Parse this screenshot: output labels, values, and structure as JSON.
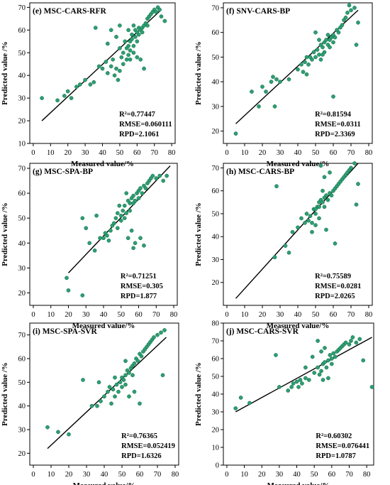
{
  "colors": {
    "point": "#2e9e72",
    "point_edge": "#0f6b47",
    "fit_line": "#000000",
    "frame": "#000000"
  },
  "chart_data": [
    {
      "type": "scatter",
      "letter": "(e)",
      "title": "MSC-CARS-RFR",
      "xlabel": "Measured value/%",
      "ylabel": "Predicted value /%",
      "xlim": [
        -2,
        82
      ],
      "ylim": [
        10,
        72
      ],
      "xticks": [
        0,
        10,
        20,
        30,
        40,
        50,
        60,
        70,
        80
      ],
      "yticks": [
        10,
        20,
        30,
        40,
        50,
        60,
        70
      ],
      "fit_line": [
        [
          5,
          20
        ],
        [
          74,
          69
        ]
      ],
      "stats": [
        "R²=0.77447",
        "RMSE=0.060111",
        "RPD=2.1061"
      ],
      "points": [
        [
          5,
          30
        ],
        [
          14,
          29
        ],
        [
          18,
          31
        ],
        [
          20,
          33
        ],
        [
          22,
          30
        ],
        [
          25,
          35
        ],
        [
          27,
          36
        ],
        [
          30,
          38
        ],
        [
          33,
          36
        ],
        [
          35,
          37
        ],
        [
          36,
          61
        ],
        [
          38,
          44
        ],
        [
          40,
          43
        ],
        [
          42,
          46
        ],
        [
          43,
          41
        ],
        [
          45,
          44
        ],
        [
          46,
          47
        ],
        [
          47,
          40
        ],
        [
          48,
          43
        ],
        [
          49,
          38
        ],
        [
          50,
          42
        ],
        [
          50,
          52
        ],
        [
          51,
          48
        ],
        [
          52,
          45
        ],
        [
          52,
          50
        ],
        [
          53,
          55
        ],
        [
          54,
          47
        ],
        [
          54,
          52
        ],
        [
          55,
          53
        ],
        [
          55,
          49
        ],
        [
          56,
          55
        ],
        [
          56,
          51
        ],
        [
          57,
          56
        ],
        [
          57,
          58
        ],
        [
          58,
          53
        ],
        [
          58,
          50
        ],
        [
          59,
          57
        ],
        [
          59,
          60
        ],
        [
          60,
          55
        ],
        [
          60,
          59
        ],
        [
          61,
          58
        ],
        [
          61,
          61
        ],
        [
          62,
          60
        ],
        [
          62,
          47
        ],
        [
          63,
          61
        ],
        [
          63,
          59
        ],
        [
          64,
          62
        ],
        [
          64,
          43
        ],
        [
          65,
          63
        ],
        [
          66,
          62
        ],
        [
          66,
          65
        ],
        [
          67,
          66
        ],
        [
          68,
          67
        ],
        [
          69,
          68
        ],
        [
          70,
          69
        ],
        [
          71,
          68
        ],
        [
          72,
          70
        ],
        [
          73,
          69
        ],
        [
          74,
          66
        ],
        [
          76,
          64
        ],
        [
          43,
          54
        ],
        [
          48,
          57
        ],
        [
          55,
          60
        ],
        [
          58,
          62
        ],
        [
          60,
          48
        ],
        [
          56,
          47
        ],
        [
          45,
          60
        ],
        [
          50,
          62
        ]
      ]
    },
    {
      "type": "scatter",
      "letter": "(f)",
      "title": "SNV-CARS-BP",
      "xlabel": "Measured value/%",
      "ylabel": "Predicted value /%",
      "xlim": [
        -2,
        82
      ],
      "ylim": [
        15,
        72
      ],
      "xticks": [
        0,
        10,
        20,
        30,
        40,
        50,
        60,
        70,
        80
      ],
      "yticks": [
        20,
        30,
        40,
        50,
        60,
        70
      ],
      "fit_line": [
        [
          5,
          23
        ],
        [
          74,
          69
        ]
      ],
      "stats": [
        "R²=0.81594",
        "RMSE=0.0311",
        "RPD=2.3369"
      ],
      "points": [
        [
          5,
          19
        ],
        [
          14,
          36
        ],
        [
          18,
          30
        ],
        [
          20,
          38
        ],
        [
          22,
          36
        ],
        [
          25,
          40
        ],
        [
          26,
          42
        ],
        [
          27,
          30
        ],
        [
          28,
          41
        ],
        [
          30,
          40
        ],
        [
          35,
          41
        ],
        [
          40,
          45
        ],
        [
          42,
          47
        ],
        [
          43,
          44
        ],
        [
          44,
          48
        ],
        [
          45,
          43
        ],
        [
          45,
          50
        ],
        [
          46,
          47
        ],
        [
          48,
          49
        ],
        [
          49,
          52
        ],
        [
          50,
          60
        ],
        [
          50,
          50
        ],
        [
          51,
          53
        ],
        [
          52,
          51
        ],
        [
          53,
          55
        ],
        [
          54,
          54
        ],
        [
          54,
          51
        ],
        [
          55,
          56
        ],
        [
          55,
          52
        ],
        [
          56,
          57
        ],
        [
          57,
          55
        ],
        [
          57,
          59
        ],
        [
          58,
          57
        ],
        [
          59,
          58
        ],
        [
          60,
          56
        ],
        [
          60,
          59
        ],
        [
          60,
          34
        ],
        [
          61,
          58
        ],
        [
          62,
          61
        ],
        [
          63,
          60
        ],
        [
          64,
          62
        ],
        [
          65,
          63
        ],
        [
          66,
          65
        ],
        [
          67,
          66
        ],
        [
          68,
          68
        ],
        [
          69,
          71
        ],
        [
          70,
          69
        ],
        [
          72,
          70
        ],
        [
          73,
          55
        ],
        [
          74,
          64
        ],
        [
          52,
          57
        ],
        [
          47,
          50
        ],
        [
          53,
          49
        ],
        [
          58,
          54
        ]
      ]
    },
    {
      "type": "scatter",
      "letter": "(g)",
      "title": "MSC-SPA-BP",
      "xlabel": "Measured value/%",
      "ylabel": "Predicted value /%",
      "xlim": [
        -2,
        82
      ],
      "ylim": [
        15,
        72
      ],
      "xticks": [
        0,
        10,
        20,
        30,
        40,
        50,
        60,
        70,
        80
      ],
      "yticks": [
        20,
        30,
        40,
        50,
        60,
        70
      ],
      "fit_line": [
        [
          20,
          28
        ],
        [
          78,
          71
        ]
      ],
      "stats": [
        "R²=0.71251",
        "RMSE=0.305",
        "RPD=1.877"
      ],
      "points": [
        [
          19,
          26
        ],
        [
          20,
          21
        ],
        [
          28,
          19
        ],
        [
          28,
          50
        ],
        [
          30,
          46
        ],
        [
          32,
          40
        ],
        [
          35,
          37
        ],
        [
          36,
          51
        ],
        [
          38,
          42
        ],
        [
          40,
          42
        ],
        [
          41,
          44
        ],
        [
          42,
          43
        ],
        [
          43,
          41
        ],
        [
          44,
          45
        ],
        [
          45,
          47
        ],
        [
          46,
          48
        ],
        [
          47,
          50
        ],
        [
          48,
          52
        ],
        [
          49,
          55
        ],
        [
          50,
          49
        ],
        [
          50,
          51
        ],
        [
          51,
          53
        ],
        [
          52,
          50
        ],
        [
          52,
          55
        ],
        [
          53,
          52
        ],
        [
          54,
          57
        ],
        [
          55,
          56
        ],
        [
          55,
          53
        ],
        [
          56,
          58
        ],
        [
          57,
          56
        ],
        [
          57,
          59
        ],
        [
          58,
          57
        ],
        [
          58,
          40
        ],
        [
          59,
          60
        ],
        [
          60,
          61
        ],
        [
          60,
          58
        ],
        [
          61,
          62
        ],
        [
          61,
          42
        ],
        [
          62,
          60
        ],
        [
          63,
          63
        ],
        [
          64,
          62
        ],
        [
          65,
          64
        ],
        [
          66,
          65
        ],
        [
          67,
          66
        ],
        [
          68,
          67
        ],
        [
          70,
          66
        ],
        [
          72,
          67
        ],
        [
          74,
          65
        ],
        [
          76,
          67
        ],
        [
          54,
          42
        ],
        [
          56,
          45
        ],
        [
          57,
          38
        ],
        [
          53,
          60
        ],
        [
          48,
          46
        ],
        [
          63,
          39
        ]
      ]
    },
    {
      "type": "scatter",
      "letter": "(h)",
      "title": "MSC-CARS-BP",
      "xlabel": "Measured value/%",
      "ylabel": "Predicted value /%",
      "xlim": [
        -2,
        82
      ],
      "ylim": [
        10,
        72
      ],
      "xticks": [
        0,
        10,
        20,
        30,
        40,
        50,
        60,
        70,
        80
      ],
      "yticks": [
        20,
        30,
        40,
        50,
        60,
        70
      ],
      "fit_line": [
        [
          5,
          13
        ],
        [
          74,
          72
        ]
      ],
      "stats": [
        "R²=0.75589",
        "RMSE=0.0281",
        "RPD=2.0265"
      ],
      "points": [
        [
          27,
          31
        ],
        [
          28,
          62
        ],
        [
          33,
          36
        ],
        [
          35,
          33
        ],
        [
          37,
          42
        ],
        [
          40,
          44
        ],
        [
          42,
          48
        ],
        [
          44,
          46
        ],
        [
          45,
          50
        ],
        [
          46,
          47
        ],
        [
          47,
          49
        ],
        [
          48,
          42
        ],
        [
          49,
          52
        ],
        [
          50,
          50
        ],
        [
          50,
          45
        ],
        [
          51,
          53
        ],
        [
          52,
          48
        ],
        [
          52,
          55
        ],
        [
          53,
          56
        ],
        [
          53,
          71
        ],
        [
          54,
          55
        ],
        [
          54,
          60
        ],
        [
          55,
          57
        ],
        [
          55,
          53
        ],
        [
          56,
          58
        ],
        [
          56,
          43
        ],
        [
          57,
          56
        ],
        [
          58,
          59
        ],
        [
          59,
          58
        ],
        [
          60,
          60
        ],
        [
          61,
          61
        ],
        [
          61,
          37
        ],
        [
          62,
          62
        ],
        [
          63,
          63
        ],
        [
          64,
          64
        ],
        [
          65,
          65
        ],
        [
          66,
          66
        ],
        [
          67,
          67
        ],
        [
          68,
          68
        ],
        [
          69,
          69
        ],
        [
          70,
          70
        ],
        [
          72,
          72
        ],
        [
          73,
          54
        ],
        [
          74,
          63
        ],
        [
          50,
          52
        ],
        [
          55,
          66
        ],
        [
          58,
          68
        ],
        [
          52,
          53
        ],
        [
          48,
          46
        ]
      ]
    },
    {
      "type": "scatter",
      "letter": "(i)",
      "title": "MSC-SPA-SVR",
      "xlabel": "Measured value/%",
      "ylabel": "Predicted value /%",
      "xlim": [
        -2,
        82
      ],
      "ylim": [
        15,
        75
      ],
      "xticks": [
        0,
        10,
        20,
        30,
        40,
        50,
        60,
        70,
        80
      ],
      "yticks": [
        20,
        30,
        40,
        50,
        60,
        70
      ],
      "fit_line": [
        [
          8,
          22
        ],
        [
          75,
          69
        ]
      ],
      "stats": [
        "R²=0.76365",
        "RMSE=0.052419",
        "RPD=1.6326"
      ],
      "points": [
        [
          8,
          31
        ],
        [
          14,
          29
        ],
        [
          20,
          28
        ],
        [
          28,
          51
        ],
        [
          33,
          40
        ],
        [
          36,
          40
        ],
        [
          37,
          50
        ],
        [
          38,
          42
        ],
        [
          40,
          44
        ],
        [
          42,
          46
        ],
        [
          43,
          48
        ],
        [
          44,
          41
        ],
        [
          45,
          47
        ],
        [
          46,
          44
        ],
        [
          47,
          49
        ],
        [
          48,
          46
        ],
        [
          49,
          50
        ],
        [
          50,
          48
        ],
        [
          50,
          52
        ],
        [
          51,
          51
        ],
        [
          52,
          53
        ],
        [
          52,
          49
        ],
        [
          53,
          55
        ],
        [
          54,
          54
        ],
        [
          54,
          44
        ],
        [
          55,
          56
        ],
        [
          56,
          57
        ],
        [
          56,
          53
        ],
        [
          57,
          58
        ],
        [
          58,
          60
        ],
        [
          59,
          59
        ],
        [
          60,
          62
        ],
        [
          60,
          41
        ],
        [
          61,
          61
        ],
        [
          62,
          63
        ],
        [
          63,
          64
        ],
        [
          64,
          65
        ],
        [
          65,
          66
        ],
        [
          66,
          67
        ],
        [
          67,
          68
        ],
        [
          68,
          69
        ],
        [
          70,
          70
        ],
        [
          72,
          71
        ],
        [
          73,
          53
        ],
        [
          74,
          72
        ],
        [
          57,
          46
        ],
        [
          46,
          52
        ],
        [
          52,
          59
        ]
      ]
    },
    {
      "type": "scatter",
      "letter": "(j)",
      "title": "MSC-CARS-SVR",
      "xlabel": "Measured value/%",
      "ylabel": "Predicted value /%",
      "xlim": [
        -2,
        84
      ],
      "ylim": [
        0,
        80
      ],
      "xticks": [
        0,
        10,
        20,
        30,
        40,
        50,
        60,
        70,
        80
      ],
      "yticks": [
        0,
        10,
        20,
        30,
        40,
        50,
        60,
        70,
        80
      ],
      "fit_line": [
        [
          5,
          30
        ],
        [
          83,
          72
        ]
      ],
      "stats": [
        "R²=0.60302",
        "RMSE=0.076441",
        "RPD=1.0787"
      ],
      "points": [
        [
          5,
          32
        ],
        [
          8,
          38
        ],
        [
          13,
          35
        ],
        [
          28,
          62
        ],
        [
          30,
          44
        ],
        [
          35,
          42
        ],
        [
          37,
          44
        ],
        [
          38,
          46
        ],
        [
          40,
          47
        ],
        [
          41,
          44
        ],
        [
          42,
          48
        ],
        [
          43,
          46
        ],
        [
          45,
          49
        ],
        [
          45,
          55
        ],
        [
          47,
          48
        ],
        [
          49,
          61
        ],
        [
          50,
          52
        ],
        [
          52,
          70
        ],
        [
          52,
          55
        ],
        [
          53,
          51
        ],
        [
          54,
          53
        ],
        [
          55,
          57
        ],
        [
          55,
          48
        ],
        [
          56,
          58
        ],
        [
          56,
          66
        ],
        [
          57,
          55
        ],
        [
          58,
          59
        ],
        [
          59,
          62
        ],
        [
          60,
          60
        ],
        [
          61,
          63
        ],
        [
          62,
          61
        ],
        [
          63,
          64
        ],
        [
          64,
          65
        ],
        [
          65,
          66
        ],
        [
          66,
          67
        ],
        [
          67,
          68
        ],
        [
          68,
          69
        ],
        [
          70,
          68
        ],
        [
          71,
          70
        ],
        [
          72,
          72
        ],
        [
          74,
          69
        ],
        [
          76,
          71
        ],
        [
          78,
          59
        ],
        [
          83,
          44
        ],
        [
          54,
          64
        ],
        [
          58,
          49
        ],
        [
          60,
          57
        ]
      ]
    }
  ]
}
